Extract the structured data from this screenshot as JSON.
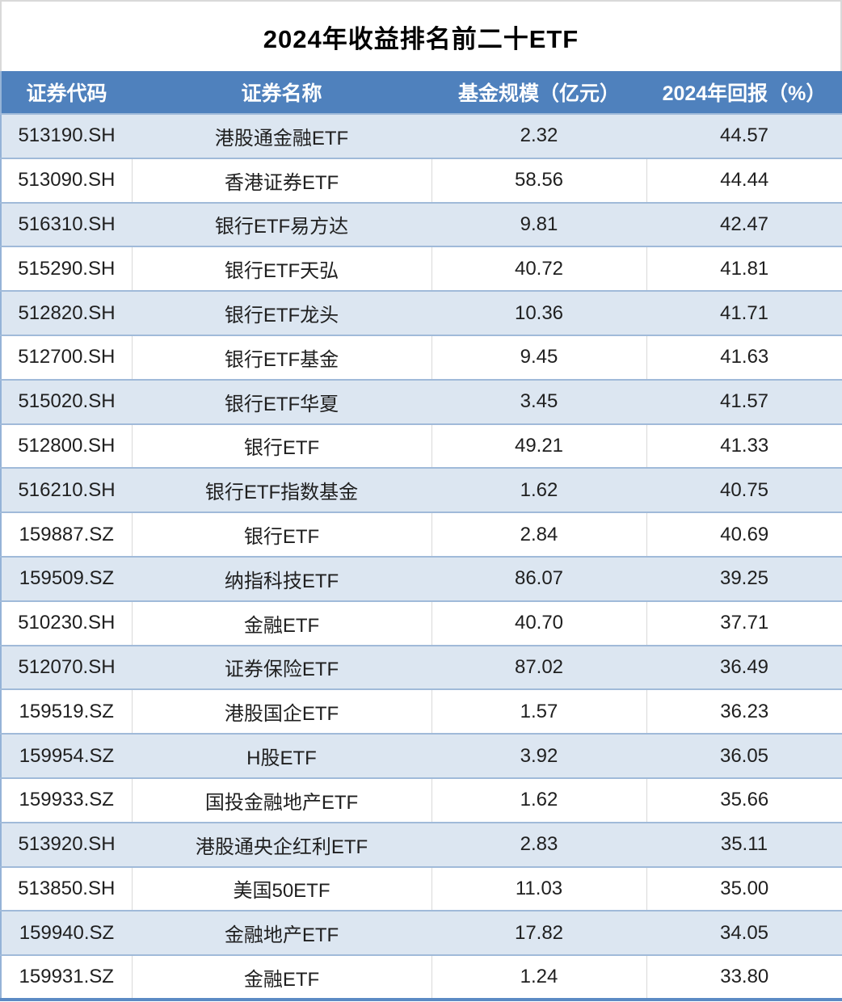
{
  "title": "2024年收益排名前二十ETF",
  "chart_data": {
    "type": "table",
    "title": "2024年收益排名前二十ETF",
    "columns": [
      "证券代码",
      "证券名称",
      "基金规模（亿元）",
      "2024年回报（%）"
    ],
    "rows": [
      [
        "513190.SH",
        "港股通金融ETF",
        "2.32",
        "44.57"
      ],
      [
        "513090.SH",
        "香港证券ETF",
        "58.56",
        "44.44"
      ],
      [
        "516310.SH",
        "银行ETF易方达",
        "9.81",
        "42.47"
      ],
      [
        "515290.SH",
        "银行ETF天弘",
        "40.72",
        "41.81"
      ],
      [
        "512820.SH",
        "银行ETF龙头",
        "10.36",
        "41.71"
      ],
      [
        "512700.SH",
        "银行ETF基金",
        "9.45",
        "41.63"
      ],
      [
        "515020.SH",
        "银行ETF华夏",
        "3.45",
        "41.57"
      ],
      [
        "512800.SH",
        "银行ETF",
        "49.21",
        "41.33"
      ],
      [
        "516210.SH",
        "银行ETF指数基金",
        "1.62",
        "40.75"
      ],
      [
        "159887.SZ",
        "银行ETF",
        "2.84",
        "40.69"
      ],
      [
        "159509.SZ",
        "纳指科技ETF",
        "86.07",
        "39.25"
      ],
      [
        "510230.SH",
        "金融ETF",
        "40.70",
        "37.71"
      ],
      [
        "512070.SH",
        "证券保险ETF",
        "87.02",
        "36.49"
      ],
      [
        "159519.SZ",
        "港股国企ETF",
        "1.57",
        "36.23"
      ],
      [
        "159954.SZ",
        "H股ETF",
        "3.92",
        "36.05"
      ],
      [
        "159933.SZ",
        "国投金融地产ETF",
        "1.62",
        "35.66"
      ],
      [
        "513920.SH",
        "港股通央企红利ETF",
        "2.83",
        "35.11"
      ],
      [
        "513850.SH",
        "美国50ETF",
        "11.03",
        "35.00"
      ],
      [
        "159940.SZ",
        "金融地产ETF",
        "17.82",
        "34.05"
      ],
      [
        "159931.SZ",
        "金融ETF",
        "1.24",
        "33.80"
      ]
    ]
  },
  "colors": {
    "header_bg": "#4F81BD",
    "band_bg": "#DCE6F1",
    "row_border": "#A0BAD9",
    "outer_border": "#95B3D7",
    "bottom_border": "#5B8AC4",
    "title_border": "#D9D9D9",
    "header_text": "#FFFFFF",
    "body_text": "#1F1F1F"
  }
}
